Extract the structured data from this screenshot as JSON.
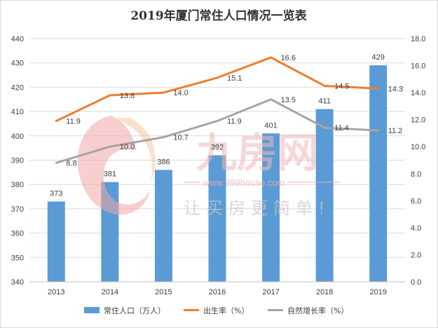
{
  "chart_data": {
    "type": "bar+line",
    "title": "2019年厦门常住人口情况一览表",
    "categories": [
      "2013",
      "2014",
      "2015",
      "2016",
      "2017",
      "2018",
      "2019"
    ],
    "left_axis": {
      "ylim": [
        340,
        440
      ],
      "ticks": [
        "340",
        "350",
        "360",
        "370",
        "380",
        "390",
        "400",
        "410",
        "420",
        "430",
        "440"
      ]
    },
    "right_axis": {
      "ylim": [
        0,
        18
      ],
      "ticks": [
        "0.0",
        "2.0",
        "4.0",
        "6.0",
        "8.0",
        "10.0",
        "12.0",
        "14.0",
        "16.0",
        "18.0"
      ]
    },
    "series": [
      {
        "name": "常住人口（万人）",
        "type": "bar",
        "axis": "left",
        "color": "#5b9bd5",
        "values": [
          373,
          381,
          386,
          392,
          401,
          411,
          429
        ]
      },
      {
        "name": "出生率（%）",
        "type": "line",
        "axis": "right",
        "color": "#ed7d31",
        "values": [
          11.9,
          13.8,
          14.0,
          15.1,
          16.6,
          14.5,
          14.3
        ]
      },
      {
        "name": "自然增长率（%）",
        "type": "line",
        "axis": "right",
        "color": "#a5a5a5",
        "values": [
          8.8,
          10.0,
          10.7,
          11.9,
          13.5,
          11.4,
          11.2
        ]
      }
    ],
    "grid": true,
    "legend_position": "bottom"
  },
  "watermark": {
    "brand": "九房网",
    "url": "www.999house.com",
    "slogan": "让买房更简单!"
  }
}
